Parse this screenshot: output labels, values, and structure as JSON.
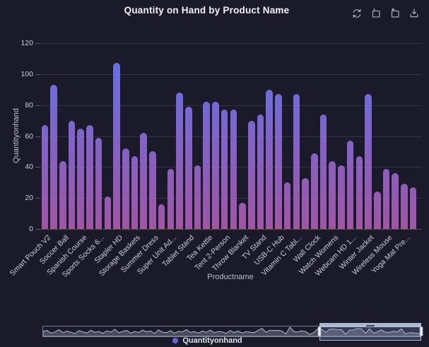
{
  "header": {
    "title": "Quantity on Hand by Product Name",
    "toolbox": {
      "refresh_tooltip": "refresh",
      "zoom_tooltip": "zoom",
      "zoom_reset_tooltip": "zoom reset",
      "download_tooltip": "download"
    }
  },
  "chart_data": {
    "type": "bar",
    "title": "Quantity on Hand by Product Name",
    "xlabel": "Productname",
    "ylabel": "Quantityonhand",
    "series_name": "Quantityonhand",
    "ylim": [
      0,
      120
    ],
    "yticks": [
      0,
      20,
      40,
      60,
      80,
      100,
      120
    ],
    "grid": true,
    "legend_position": "bottom-center",
    "bar_count": 42,
    "axis_label_every": 2,
    "categories": [
      "Smart Pouch V2",
      "Soccer Ball",
      "Spanish Course",
      "Sports Socks 6...",
      "Stapler HD",
      "Storage Baskets",
      "Summer Dress",
      "Super Unit Ad...",
      "Tablet Stand",
      "Tea Kettle",
      "Tent 2-Person",
      "Throw Blanket",
      "TV Stand",
      "USB-C Hub",
      "Vitamin C Tabl...",
      "Wall Clock",
      "Watch Womens",
      "Webcam HD 1...",
      "Winter Jacket",
      "Wireless Mouse",
      "Yoga Mat Pre..."
    ],
    "values": [
      67,
      93,
      44,
      70,
      65,
      67,
      59,
      21,
      107,
      52,
      47,
      62,
      50,
      16,
      39,
      88,
      79,
      41,
      82,
      82,
      77,
      77,
      17,
      70,
      74,
      90,
      87,
      30,
      87,
      33,
      49,
      74,
      44,
      41,
      57,
      47,
      87,
      24,
      39,
      36,
      29,
      27
    ],
    "slider": {
      "window_start_frac": 0.73,
      "window_end_frac": 1.0,
      "preview": [
        0.5,
        0.62,
        0.3,
        0.45,
        0.7,
        0.35,
        0.55,
        0.4,
        0.25,
        0.6,
        0.45,
        0.3,
        0.65,
        0.4,
        0.5,
        0.28,
        0.58,
        0.42,
        0.75,
        0.35,
        0.5,
        0.62,
        0.3,
        0.48,
        0.38,
        0.66,
        0.45,
        0.55,
        0.25,
        0.68,
        0.42,
        0.35,
        0.6,
        0.3,
        0.52,
        0.44,
        0.72,
        0.38,
        0.48,
        0.3,
        0.56,
        0.4,
        0.65,
        0.35,
        0.5,
        0.45,
        0.28,
        0.6,
        0.38,
        0.55,
        0.32,
        0.48,
        0.42,
        0.36,
        0.63,
        0.87,
        0.41,
        0.65,
        0.61,
        0.63,
        0.55,
        0.2,
        1.0,
        0.49,
        0.44,
        0.58,
        0.47,
        0.15,
        0.36,
        0.82,
        0.74,
        0.38,
        0.77,
        0.77,
        0.72,
        0.72,
        0.16,
        0.65,
        0.69,
        0.84,
        0.81,
        0.28,
        0.81,
        0.31,
        0.46,
        0.69,
        0.41,
        0.38,
        0.53,
        0.44,
        0.81,
        0.22,
        0.36,
        0.34,
        0.27,
        0.25
      ]
    }
  },
  "colors": {
    "background": "#1a1a2b",
    "bar_gradient_top": "#6073ea",
    "bar_gradient_bottom": "#a055a5",
    "legend_dot": "#6f63d2",
    "gridline": "#3f3c34",
    "axis_text": "#c9cad4"
  }
}
